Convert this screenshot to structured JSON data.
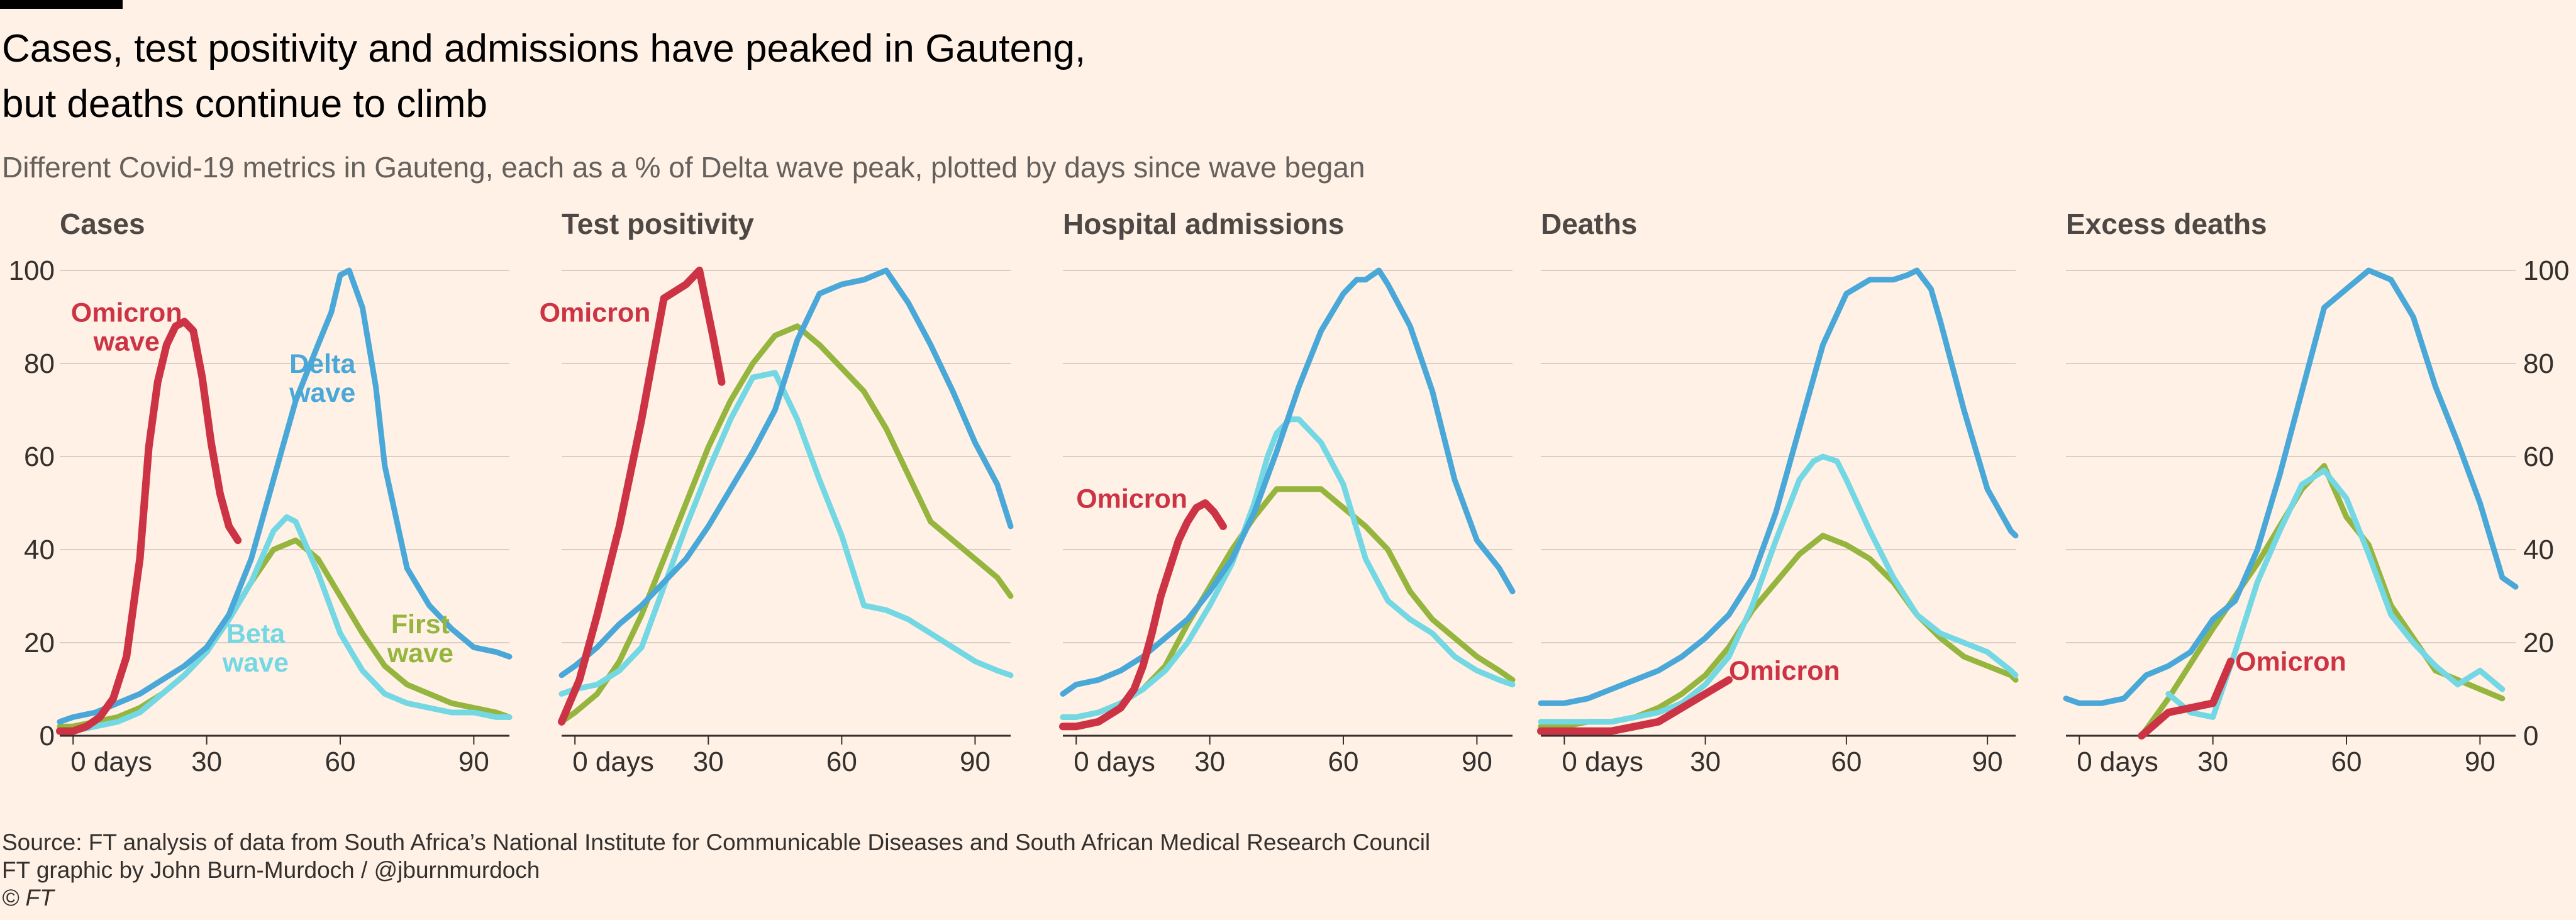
{
  "title_lines": [
    "Cases, test positivity and admissions have peaked in Gauteng,",
    "but deaths continue to climb"
  ],
  "subtitle": "Different Covid-19 metrics in Gauteng, each as a % of Delta wave peak, plotted by days since wave began",
  "footer": {
    "source": "Source: FT analysis of data from South Africa’s National Institute for Communicable Diseases and South African Medical Research Council",
    "credit": "FT graphic by John Burn-Murdoch / @jburnmurdoch",
    "copyright": "© FT"
  },
  "colors": {
    "omicron": "#cc3344",
    "delta": "#4aa8d8",
    "beta": "#74d8e4",
    "first": "#96b53f",
    "grid": "#d9cfc6",
    "axis": "#33302e"
  },
  "chart_data": [
    {
      "type": "line",
      "title": "Cases",
      "xlim": [
        -3,
        98
      ],
      "ylim": [
        0,
        100
      ],
      "x_ticks": [
        0,
        30,
        60,
        90
      ],
      "x_tick_labels": [
        "0 days",
        "30",
        "60",
        "90"
      ],
      "y_ticks": [
        0,
        20,
        40,
        60,
        80,
        100
      ],
      "y_tick_labels": [
        "0",
        "20",
        "40",
        "60",
        "80",
        "100"
      ],
      "series": [
        {
          "name": "First wave",
          "color_key": "first",
          "x": [
            -3,
            0,
            5,
            10,
            15,
            20,
            25,
            30,
            35,
            40,
            45,
            50,
            55,
            60,
            65,
            70,
            75,
            80,
            85,
            90,
            95,
            98
          ],
          "y": [
            2,
            2,
            3,
            4,
            6,
            9,
            13,
            18,
            25,
            33,
            40,
            42,
            38,
            30,
            22,
            15,
            11,
            9,
            7,
            6,
            5,
            4
          ]
        },
        {
          "name": "Beta wave",
          "color_key": "beta",
          "x": [
            -3,
            0,
            5,
            10,
            15,
            20,
            25,
            30,
            35,
            40,
            45,
            48,
            50,
            55,
            60,
            65,
            70,
            75,
            80,
            85,
            90,
            95,
            98
          ],
          "y": [
            1,
            1,
            2,
            3,
            5,
            9,
            13,
            18,
            25,
            33,
            44,
            47,
            46,
            35,
            22,
            14,
            9,
            7,
            6,
            5,
            5,
            4,
            4
          ]
        },
        {
          "name": "Delta wave",
          "color_key": "delta",
          "x": [
            -3,
            0,
            5,
            10,
            15,
            20,
            25,
            30,
            35,
            40,
            45,
            50,
            55,
            58,
            60,
            62,
            65,
            68,
            70,
            75,
            80,
            85,
            90,
            95,
            98
          ],
          "y": [
            3,
            4,
            5,
            7,
            9,
            12,
            15,
            19,
            26,
            38,
            55,
            72,
            84,
            91,
            99,
            100,
            92,
            75,
            58,
            36,
            28,
            23,
            19,
            18,
            17
          ]
        },
        {
          "name": "Omicron wave",
          "color_key": "omicron",
          "x": [
            -3,
            0,
            3,
            6,
            9,
            12,
            15,
            17,
            19,
            21,
            23,
            25,
            27,
            29,
            31,
            33,
            35,
            37
          ],
          "y": [
            1,
            1,
            2,
            4,
            8,
            17,
            38,
            62,
            76,
            84,
            88,
            89,
            87,
            77,
            63,
            52,
            45,
            42
          ]
        }
      ],
      "annotations": [
        {
          "lines": [
            "Omicron",
            "wave"
          ],
          "color_key": "omicron",
          "x": 12,
          "y": 89,
          "anchor": "middle"
        },
        {
          "lines": [
            "Delta",
            "wave"
          ],
          "color_key": "delta",
          "x": 56,
          "y": 78,
          "anchor": "middle"
        },
        {
          "lines": [
            "Beta",
            "wave"
          ],
          "color_key": "beta",
          "x": 41,
          "y": 20,
          "anchor": "middle"
        },
        {
          "lines": [
            "First",
            "wave"
          ],
          "color_key": "first",
          "x": 78,
          "y": 22,
          "anchor": "middle"
        }
      ]
    },
    {
      "type": "line",
      "title": "Test positivity",
      "xlim": [
        -3,
        98
      ],
      "ylim": [
        0,
        100
      ],
      "x_ticks": [
        0,
        30,
        60,
        90
      ],
      "x_tick_labels": [
        "0 days",
        "30",
        "60",
        "90"
      ],
      "y_ticks": [
        0,
        20,
        40,
        60,
        80,
        100
      ],
      "y_tick_labels": [],
      "series": [
        {
          "name": "First wave",
          "color_key": "first",
          "x": [
            -3,
            0,
            5,
            10,
            15,
            20,
            25,
            30,
            35,
            40,
            45,
            50,
            55,
            60,
            65,
            70,
            75,
            80,
            85,
            90,
            95,
            98
          ],
          "y": [
            3,
            5,
            9,
            16,
            26,
            38,
            50,
            62,
            72,
            80,
            86,
            88,
            84,
            79,
            74,
            66,
            56,
            46,
            42,
            38,
            34,
            30
          ]
        },
        {
          "name": "Beta wave",
          "color_key": "beta",
          "x": [
            -3,
            0,
            5,
            10,
            15,
            20,
            25,
            30,
            35,
            40,
            45,
            50,
            55,
            60,
            65,
            70,
            75,
            80,
            85,
            90,
            95,
            98
          ],
          "y": [
            9,
            10,
            11,
            14,
            19,
            32,
            45,
            57,
            68,
            77,
            78,
            68,
            55,
            43,
            28,
            27,
            25,
            22,
            19,
            16,
            14,
            13
          ]
        },
        {
          "name": "Delta wave",
          "color_key": "delta",
          "x": [
            -3,
            0,
            5,
            10,
            15,
            20,
            25,
            30,
            35,
            40,
            45,
            50,
            55,
            60,
            65,
            70,
            75,
            80,
            85,
            90,
            95,
            98
          ],
          "y": [
            13,
            15,
            19,
            24,
            28,
            33,
            38,
            45,
            53,
            61,
            70,
            85,
            95,
            97,
            98,
            100,
            93,
            84,
            74,
            63,
            54,
            45
          ]
        },
        {
          "name": "Omicron",
          "color_key": "omicron",
          "x": [
            -3,
            1,
            5,
            10,
            15,
            20,
            25,
            28,
            31,
            33
          ],
          "y": [
            3,
            12,
            26,
            45,
            68,
            94,
            97,
            100,
            86,
            76
          ]
        }
      ],
      "annotations": [
        {
          "lines": [
            "Omicron"
          ],
          "color_key": "omicron",
          "x": 17,
          "y": 89,
          "anchor": "end"
        }
      ]
    },
    {
      "type": "line",
      "title": "Hospital admissions",
      "xlim": [
        -3,
        98
      ],
      "ylim": [
        0,
        100
      ],
      "x_ticks": [
        0,
        30,
        60,
        90
      ],
      "x_tick_labels": [
        "0 days",
        "30",
        "60",
        "90"
      ],
      "y_ticks": [
        0,
        20,
        40,
        60,
        80,
        100
      ],
      "y_tick_labels": [],
      "series": [
        {
          "name": "First wave",
          "color_key": "first",
          "x": [
            -3,
            0,
            5,
            10,
            15,
            20,
            25,
            30,
            35,
            40,
            45,
            50,
            55,
            60,
            65,
            70,
            75,
            80,
            85,
            90,
            95,
            98
          ],
          "y": [
            4,
            4,
            5,
            7,
            10,
            15,
            24,
            32,
            40,
            47,
            53,
            53,
            53,
            49,
            45,
            40,
            31,
            25,
            21,
            17,
            14,
            12
          ]
        },
        {
          "name": "Beta wave",
          "color_key": "beta",
          "x": [
            -3,
            0,
            5,
            10,
            15,
            20,
            25,
            30,
            35,
            40,
            43,
            45,
            48,
            50,
            55,
            60,
            65,
            70,
            75,
            80,
            85,
            90,
            95,
            98
          ],
          "y": [
            4,
            4,
            5,
            7,
            10,
            14,
            20,
            28,
            37,
            50,
            60,
            65,
            68,
            68,
            63,
            54,
            38,
            29,
            25,
            22,
            17,
            14,
            12,
            11
          ]
        },
        {
          "name": "Delta wave",
          "color_key": "delta",
          "x": [
            -3,
            0,
            5,
            10,
            15,
            20,
            25,
            30,
            35,
            40,
            45,
            50,
            55,
            60,
            63,
            65,
            68,
            70,
            75,
            80,
            85,
            90,
            95,
            98
          ],
          "y": [
            9,
            11,
            12,
            14,
            17,
            21,
            25,
            31,
            38,
            48,
            61,
            75,
            87,
            95,
            98,
            98,
            100,
            97,
            88,
            74,
            55,
            42,
            36,
            31
          ]
        },
        {
          "name": "Omicron",
          "color_key": "omicron",
          "x": [
            -3,
            0,
            5,
            10,
            13,
            15,
            17,
            19,
            21,
            23,
            25,
            27,
            29,
            31,
            33
          ],
          "y": [
            2,
            2,
            3,
            6,
            10,
            15,
            22,
            30,
            36,
            42,
            46,
            49,
            50,
            48,
            45
          ]
        }
      ],
      "annotations": [
        {
          "lines": [
            "Omicron"
          ],
          "color_key": "omicron",
          "x": 0,
          "y": 49,
          "anchor": "start"
        }
      ]
    },
    {
      "type": "line",
      "title": "Deaths",
      "xlim": [
        -5,
        96
      ],
      "ylim": [
        0,
        100
      ],
      "x_ticks": [
        0,
        30,
        60,
        90
      ],
      "x_tick_labels": [
        "0 days",
        "30",
        "60",
        "90"
      ],
      "y_ticks": [
        0,
        20,
        40,
        60,
        80,
        100
      ],
      "y_tick_labels": [],
      "series": [
        {
          "name": "First wave",
          "color_key": "first",
          "x": [
            -5,
            0,
            5,
            10,
            15,
            20,
            25,
            30,
            35,
            40,
            45,
            50,
            55,
            60,
            65,
            70,
            75,
            80,
            85,
            90,
            95,
            96
          ],
          "y": [
            2,
            2,
            3,
            3,
            4,
            6,
            9,
            13,
            19,
            27,
            33,
            39,
            43,
            41,
            38,
            33,
            26,
            21,
            17,
            15,
            13,
            12
          ]
        },
        {
          "name": "Beta wave",
          "color_key": "beta",
          "x": [
            -5,
            0,
            5,
            10,
            15,
            20,
            25,
            30,
            35,
            40,
            45,
            50,
            53,
            55,
            58,
            60,
            65,
            70,
            75,
            80,
            85,
            90,
            95,
            96
          ],
          "y": [
            3,
            3,
            3,
            3,
            4,
            5,
            7,
            11,
            17,
            28,
            42,
            55,
            59,
            60,
            59,
            55,
            44,
            34,
            26,
            22,
            20,
            18,
            14,
            13
          ]
        },
        {
          "name": "Delta wave",
          "color_key": "delta",
          "x": [
            -5,
            0,
            5,
            10,
            15,
            20,
            25,
            30,
            35,
            40,
            45,
            50,
            55,
            60,
            65,
            70,
            73,
            75,
            78,
            80,
            85,
            90,
            95,
            96
          ],
          "y": [
            7,
            7,
            8,
            10,
            12,
            14,
            17,
            21,
            26,
            34,
            48,
            66,
            84,
            95,
            98,
            98,
            99,
            100,
            96,
            89,
            70,
            53,
            44,
            43
          ]
        },
        {
          "name": "Omicron",
          "color_key": "omicron",
          "x": [
            -5,
            0,
            5,
            10,
            15,
            20,
            25,
            30,
            35
          ],
          "y": [
            1,
            1,
            1,
            1,
            2,
            3,
            6,
            9,
            12
          ]
        }
      ],
      "annotations": [
        {
          "lines": [
            "Omicron"
          ],
          "color_key": "omicron",
          "x": 35,
          "y": 12,
          "anchor": "start"
        }
      ]
    },
    {
      "type": "line",
      "title": "Excess deaths",
      "xlim": [
        -3,
        98
      ],
      "ylim": [
        0,
        100
      ],
      "x_ticks": [
        0,
        30,
        60,
        90
      ],
      "x_tick_labels": [
        "0 days",
        "30",
        "60",
        "90"
      ],
      "y_ticks": [
        0,
        20,
        40,
        60,
        80,
        100
      ],
      "y_tick_labels": [
        "0",
        "20",
        "40",
        "60",
        "80",
        "100"
      ],
      "series": [
        {
          "name": "First wave",
          "color_key": "first",
          "x": [
            14,
            20,
            30,
            40,
            50,
            55,
            60,
            65,
            70,
            75,
            80,
            85,
            90,
            95
          ],
          "y": [
            0,
            8,
            23,
            37,
            53,
            58,
            47,
            41,
            28,
            21,
            14,
            12,
            10,
            8
          ]
        },
        {
          "name": "Beta wave",
          "color_key": "beta",
          "x": [
            20,
            25,
            30,
            35,
            40,
            45,
            50,
            55,
            60,
            65,
            70,
            75,
            80,
            85,
            90,
            95
          ],
          "y": [
            9,
            5,
            4,
            18,
            33,
            44,
            54,
            57,
            51,
            39,
            26,
            20,
            15,
            11,
            14,
            10
          ]
        },
        {
          "name": "Delta wave",
          "color_key": "delta",
          "x": [
            -3,
            0,
            5,
            10,
            15,
            20,
            25,
            30,
            35,
            40,
            45,
            50,
            55,
            60,
            65,
            70,
            75,
            80,
            85,
            90,
            95,
            98
          ],
          "y": [
            8,
            7,
            7,
            8,
            13,
            15,
            18,
            25,
            29,
            40,
            56,
            74,
            92,
            96,
            100,
            98,
            90,
            75,
            63,
            50,
            34,
            32
          ]
        },
        {
          "name": "Omicron",
          "color_key": "omicron",
          "x": [
            14,
            20,
            25,
            30,
            34
          ],
          "y": [
            0,
            5,
            6,
            7,
            16
          ]
        }
      ],
      "annotations": [
        {
          "lines": [
            "Omicron"
          ],
          "color_key": "omicron",
          "x": 35,
          "y": 14,
          "anchor": "start"
        }
      ]
    }
  ]
}
